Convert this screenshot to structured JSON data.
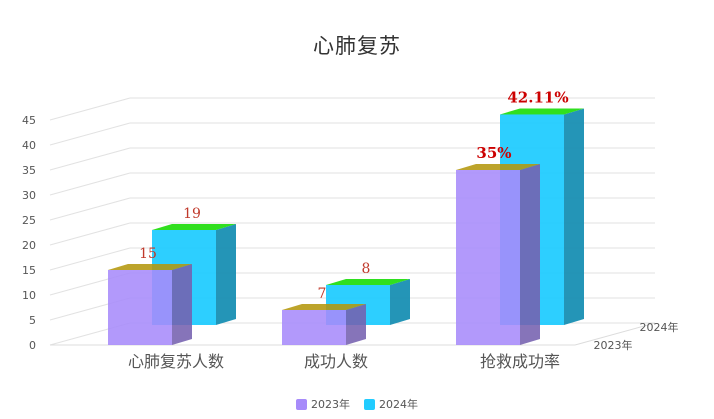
{
  "chart_data": {
    "type": "bar",
    "title": "心肺复苏",
    "categories": [
      "心肺复苏人数",
      "成功人数",
      "抢救成功率"
    ],
    "series": [
      {
        "name": "2023年",
        "values": [
          15,
          7,
          35
        ],
        "labels": [
          "15",
          "7",
          "35%"
        ],
        "color": "#a78bfa"
      },
      {
        "name": "2024年",
        "values": [
          19,
          8,
          42.11
        ],
        "labels": [
          "19",
          "8",
          "42.11%"
        ],
        "color": "#22ccff"
      }
    ],
    "y_ticks": [
      "0",
      "5",
      "10",
      "15",
      "20",
      "25",
      "30",
      "35",
      "40",
      "45"
    ],
    "ylim": [
      0,
      45
    ],
    "grid": true,
    "three_d": true,
    "legend_position": "bottom",
    "label_color_small": "#c0392b",
    "label_color_large": "#cc0000"
  }
}
